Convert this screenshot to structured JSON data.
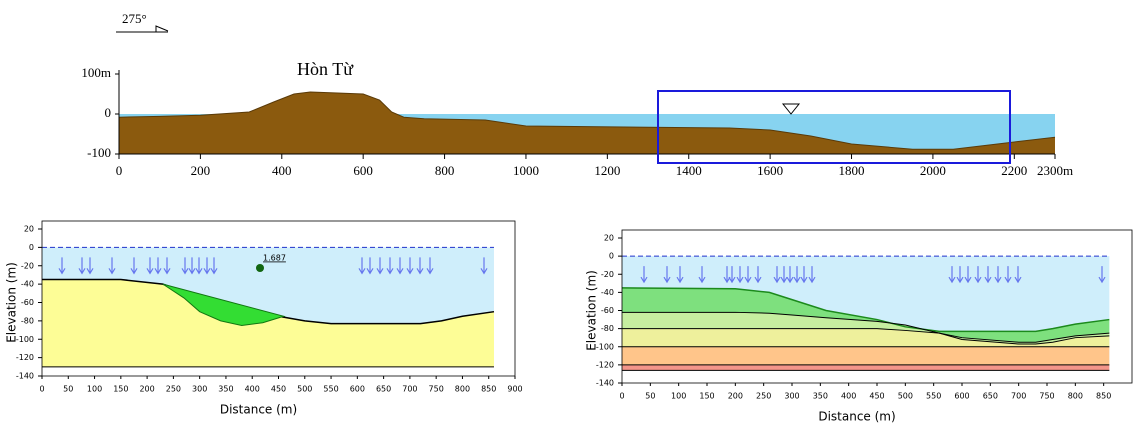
{
  "chart_data": [
    {
      "type": "profile",
      "annotations": [
        "275°",
        "Hòn Từ"
      ],
      "x": [
        0,
        100,
        200,
        320,
        380,
        430,
        470,
        520,
        600,
        640,
        670,
        700,
        750,
        900,
        1000,
        1500,
        1600,
        1700,
        1800,
        1950,
        2050,
        2200,
        2300
      ],
      "series": [
        {
          "fill": "#8b5a0e",
          "values": [
            -8,
            -6,
            -3,
            5,
            30,
            50,
            55,
            53,
            50,
            35,
            5,
            -8,
            -12,
            -15,
            -30,
            -35,
            -40,
            -55,
            -75,
            -88,
            -88,
            -70,
            -58
          ]
        }
      ],
      "water_level": 0,
      "water_color": "#87d3f0",
      "xlim": [
        0,
        2300
      ],
      "ylim": [
        -100,
        100
      ],
      "xticks": [
        0,
        200,
        400,
        600,
        800,
        1000,
        1200,
        1400,
        1600,
        1800,
        2000,
        2200,
        {
          "value": 2300,
          "label": "2300m"
        }
      ],
      "yticks": [
        {
          "value": 100,
          "label": "100m"
        },
        0,
        -100
      ]
    },
    {
      "type": "slope",
      "x_label": "Distance (m)",
      "y_label": "Elevation (m)",
      "annotation": "1.687",
      "x": [
        0,
        150,
        230,
        280,
        330,
        400,
        450,
        500,
        550,
        600,
        720,
        760,
        800,
        860
      ],
      "series": [
        {
          "fill": "#fdfd96",
          "line_color": "#000000",
          "values": [
            -35,
            -35,
            -40,
            -50,
            -60,
            -70,
            -75,
            -80,
            -83,
            -83,
            -83,
            -80,
            -75,
            -70
          ]
        },
        {
          "values": [
            -130,
            -130,
            -130,
            -130,
            -130,
            -130,
            -130,
            -130,
            -130,
            -130,
            -130,
            -130,
            -130,
            -130
          ]
        }
      ],
      "slip": {
        "color": "#33dd33",
        "x": [
          230,
          270,
          300,
          340,
          380,
          420,
          460
        ],
        "values": [
          -40,
          -55,
          -70,
          -80,
          -85,
          -82,
          -75
        ]
      },
      "water_level": 0,
      "water_color": "#cfeefb",
      "xlim": [
        0,
        900
      ],
      "ylim": [
        -140,
        20
      ],
      "xticks": [
        0,
        50,
        100,
        150,
        200,
        250,
        300,
        350,
        400,
        450,
        500,
        550,
        600,
        650,
        700,
        750,
        800,
        850,
        900
      ],
      "yticks": [
        20,
        0,
        -20,
        -40,
        -60,
        -80,
        -100,
        -120,
        -140
      ]
    },
    {
      "type": "slope",
      "x_label": "Distance (m)",
      "y_label": "Elevation (m)",
      "x": [
        0,
        200,
        260,
        300,
        360,
        450,
        500,
        560,
        600,
        700,
        730,
        760,
        800,
        860
      ],
      "series": [
        {
          "fill": "#7ee07e",
          "line_color": "#1c8a1c",
          "values": [
            -35,
            -36,
            -40,
            -48,
            -60,
            -70,
            -78,
            -83,
            -83,
            -83,
            -83,
            -80,
            -75,
            -70
          ]
        },
        {
          "fill": "#c6eea0",
          "line_color": "#000000",
          "values": [
            -62,
            -62,
            -63,
            -65,
            -68,
            -72,
            -76,
            -85,
            -90,
            -95,
            -95,
            -92,
            -88,
            -85
          ]
        },
        {
          "fill": "#eef09c",
          "line_color": "#000000",
          "values": [
            -80,
            -80,
            -80,
            -80,
            -80,
            -80,
            -82,
            -85,
            -92,
            -97,
            -97,
            -95,
            -90,
            -88
          ]
        },
        {
          "fill": "#ffc58a",
          "line_color": "#000000",
          "values": [
            -100,
            -100,
            -100,
            -100,
            -100,
            -100,
            -100,
            -100,
            -100,
            -100,
            -100,
            -100,
            -100,
            -100
          ]
        },
        {
          "fill": "#f4958a",
          "line_color": "#000000",
          "values": [
            -120,
            -120,
            -120,
            -120,
            -120,
            -120,
            -120,
            -120,
            -120,
            -120,
            -120,
            -120,
            -120,
            -120
          ]
        },
        {
          "values": [
            -126,
            -126,
            -126,
            -126,
            -126,
            -126,
            -126,
            -126,
            -126,
            -126,
            -126,
            -126,
            -126,
            -126
          ]
        }
      ],
      "water_level": 0,
      "water_color": "#cfeefb",
      "xlim": [
        0,
        900
      ],
      "ylim": [
        -140,
        20
      ],
      "xticks": [
        0,
        50,
        100,
        150,
        200,
        250,
        300,
        350,
        400,
        450,
        500,
        550,
        600,
        650,
        700,
        750,
        800,
        850
      ],
      "yticks": [
        20,
        0,
        -20,
        -40,
        -60,
        -80,
        -100,
        -120,
        -140
      ]
    }
  ]
}
